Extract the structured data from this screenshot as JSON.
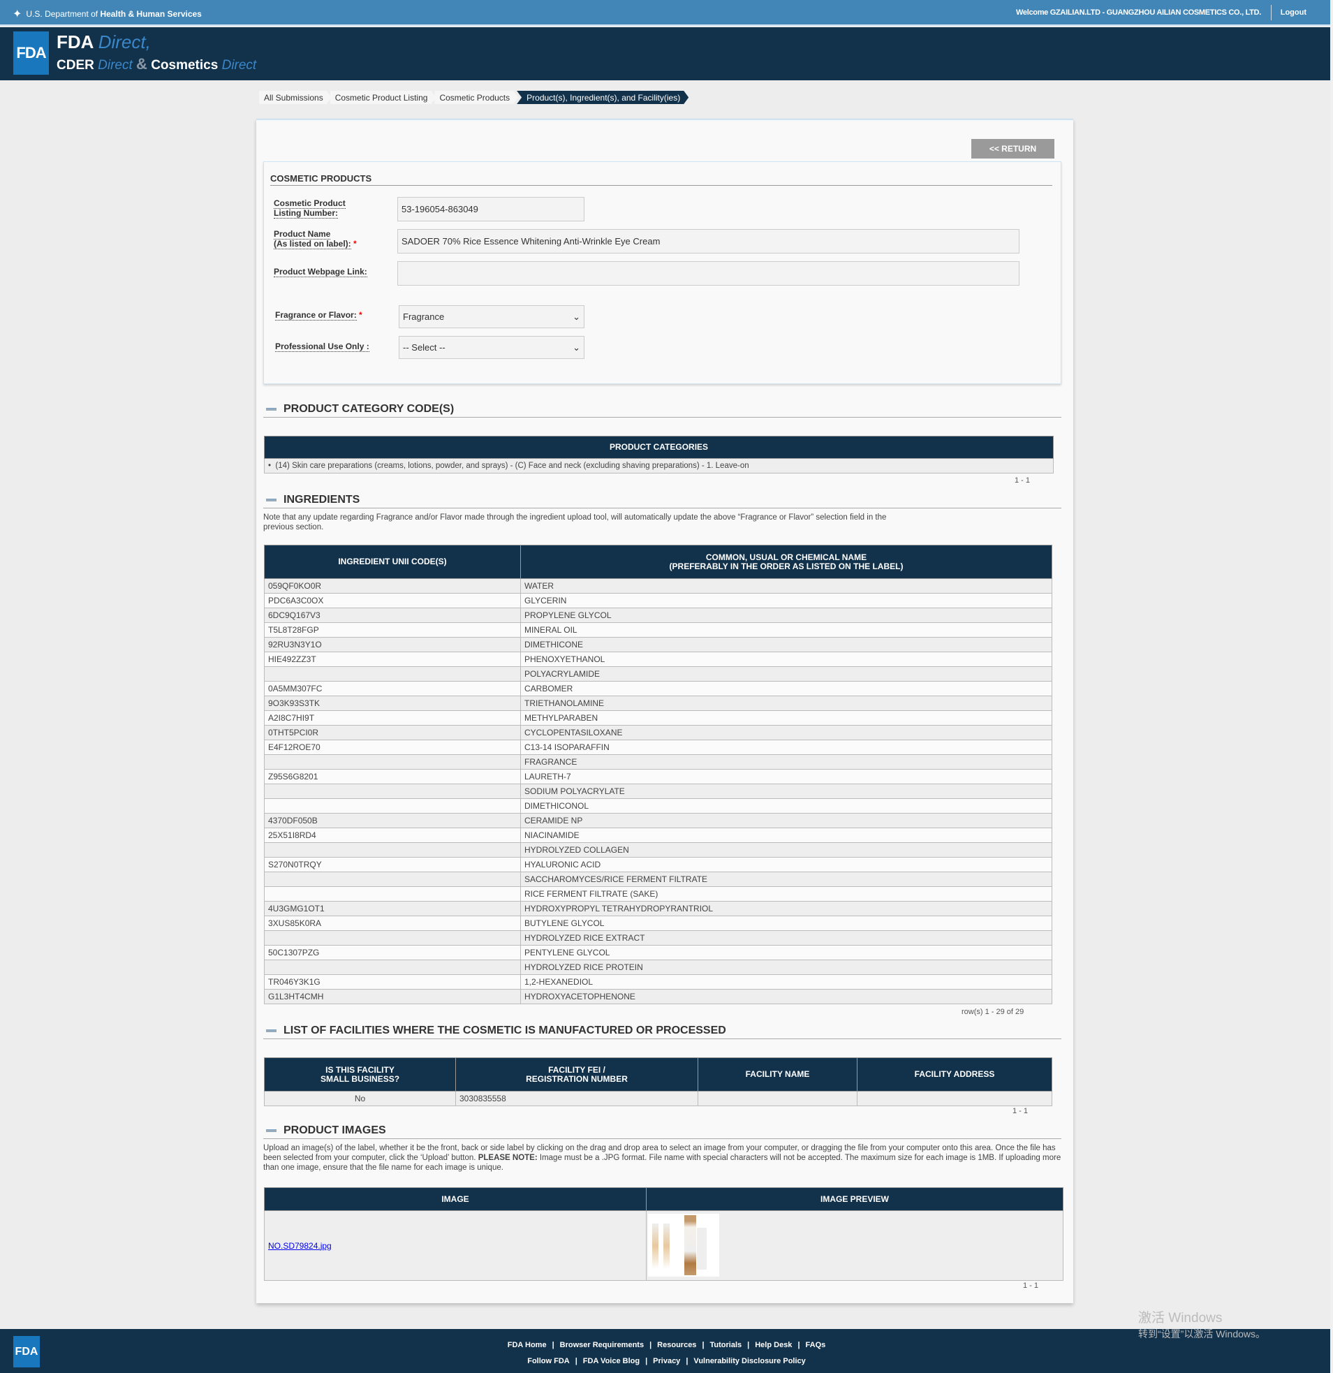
{
  "topbar": {
    "hhs_prefix": "U.S. Department of",
    "hhs_bold": "Health & Human Services",
    "welcome": "Welcome GZAILIAN.LTD - GUANGZHOU AILIAN COSMETICS CO., LTD.",
    "logout": "Logout"
  },
  "brand": {
    "logo": "FDA",
    "fda": "FDA",
    "direct": "Direct,",
    "cder": "CDER",
    "direct2": "Direct",
    "amp": "&",
    "cosmetics": "Cosmetics",
    "direct3": "Direct"
  },
  "breadcrumb": [
    "All Submissions",
    "Cosmetic Product Listing",
    "Cosmetic Products",
    "Product(s), Ingredient(s), and Facility(ies)"
  ],
  "return_label": "<< RETURN",
  "cosmetic_products": {
    "title": "COSMETIC PRODUCTS",
    "listing_label_1": "Cosmetic Product",
    "listing_label_2": "Listing Number:",
    "listing_value": "53-196054-863049",
    "name_label_1": "Product Name",
    "name_label_2": "(As listed on label):",
    "name_value": "SADOER 70% Rice Essence Whitening Anti-Wrinkle Eye Cream",
    "webpage_label": "Product Webpage Link:",
    "webpage_value": "",
    "fragrance_label": "Fragrance or Flavor:",
    "fragrance_value": "Fragrance",
    "professional_label": "Professional Use Only :",
    "professional_value": "-- Select --",
    "required_mark": "*"
  },
  "categories": {
    "heading": "PRODUCT CATEGORY CODE(S)",
    "column": "PRODUCT CATEGORIES",
    "items": [
      "(14) Skin care preparations (creams, lotions, powder, and sprays) - (C) Face and neck (excluding shaving preparations) - 1. Leave-on"
    ],
    "pagination": "1 - 1"
  },
  "ingredients": {
    "heading": "INGREDIENTS",
    "note": "Note that any update regarding Fragrance and/or Flavor made through the ingredient upload tool, will automatically update the above “Fragrance or Flavor” selection field in the previous section.",
    "col1": "INGREDIENT UNII CODE(S)",
    "col2_line1": "COMMON, USUAL OR CHEMICAL NAME",
    "col2_line2": "(PREFERABLY IN THE ORDER AS LISTED ON THE LABEL)",
    "rows": [
      [
        "059QF0KO0R",
        "WATER"
      ],
      [
        "PDC6A3C0OX",
        "GLYCERIN"
      ],
      [
        "6DC9Q167V3",
        "PROPYLENE GLYCOL"
      ],
      [
        "T5L8T28FGP",
        "MINERAL OIL"
      ],
      [
        "92RU3N3Y1O",
        "DIMETHICONE"
      ],
      [
        "HIE492ZZ3T",
        "PHENOXYETHANOL"
      ],
      [
        "",
        "POLYACRYLAMIDE"
      ],
      [
        "0A5MM307FC",
        "CARBOMER"
      ],
      [
        "9O3K93S3TK",
        "TRIETHANOLAMINE"
      ],
      [
        "A2I8C7HI9T",
        "METHYLPARABEN"
      ],
      [
        "0THT5PCI0R",
        "CYCLOPENTASILOXANE"
      ],
      [
        "E4F12ROE70",
        "C13-14 ISOPARAFFIN"
      ],
      [
        "",
        "FRAGRANCE"
      ],
      [
        "Z95S6G8201",
        "LAURETH-7"
      ],
      [
        "",
        "SODIUM POLYACRYLATE"
      ],
      [
        "",
        "DIMETHICONOL"
      ],
      [
        "4370DF050B",
        "CERAMIDE NP"
      ],
      [
        "25X51I8RD4",
        "NIACINAMIDE"
      ],
      [
        "",
        "HYDROLYZED COLLAGEN"
      ],
      [
        "S270N0TRQY",
        "HYALURONIC ACID"
      ],
      [
        "",
        "SACCHAROMYCES/RICE FERMENT FILTRATE"
      ],
      [
        "",
        "RICE FERMENT FILTRATE (SAKE)"
      ],
      [
        "4U3GMG1OT1",
        "HYDROXYPROPYL TETRAHYDROPYRANTRIOL"
      ],
      [
        "3XUS85K0RA",
        "BUTYLENE GLYCOL"
      ],
      [
        "",
        "HYDROLYZED RICE EXTRACT"
      ],
      [
        "50C1307PZG",
        "PENTYLENE GLYCOL"
      ],
      [
        "",
        "HYDROLYZED RICE PROTEIN"
      ],
      [
        "TR046Y3K1G",
        "1,2-HEXANEDIOL"
      ],
      [
        "G1L3HT4CMH",
        "HYDROXYACETOPHENONE"
      ]
    ],
    "pagination": "row(s) 1 - 29 of 29"
  },
  "facilities": {
    "heading": "LIST OF FACILITIES WHERE THE COSMETIC IS MANUFACTURED OR PROCESSED",
    "col1_l1": "IS THIS FACILITY",
    "col1_l2": "SMALL BUSINESS?",
    "col2_l1": "FACILITY FEI /",
    "col2_l2": "REGISTRATION NUMBER",
    "col3": "FACILITY NAME",
    "col4": "FACILITY ADDRESS",
    "rows": [
      [
        "No",
        "3030835558",
        "",
        ""
      ]
    ],
    "pagination": "1 - 1"
  },
  "images": {
    "heading": "PRODUCT IMAGES",
    "note_1": "Upload an image(s) of the label, whether it be the front, back or side label by clicking on the drag and drop area to select an image from your computer, or dragging the file from your computer onto this area. Once the file has been selected from your computer, click the ‘Upload’ button.",
    "note_bold": "PLEASE NOTE:",
    "note_2": "Image must be a .JPG format. File name with special characters will not be accepted. The maximum size for each image is 1MB. If uploading more than one image, ensure that the file name for each image is unique.",
    "col1": "IMAGE",
    "col2": "IMAGE PREVIEW",
    "file": "NO.SD79824.jpg",
    "pagination": "1 - 1"
  },
  "footer": {
    "logo": "FDA",
    "row1": [
      "FDA Home",
      "Browser Requirements",
      "Resources",
      "Tutorials",
      "Help Desk",
      "FAQs"
    ],
    "row2": [
      "Follow FDA",
      "FDA Voice Blog",
      "Privacy",
      "Vulnerability Disclosure Policy"
    ]
  },
  "watermark": {
    "line1": "激活 Windows",
    "line2": "转到“设置”以激活 Windows。"
  },
  "colors": {
    "topbar": "#4186b7",
    "header": "#12324c",
    "accent": "#1877bd"
  }
}
